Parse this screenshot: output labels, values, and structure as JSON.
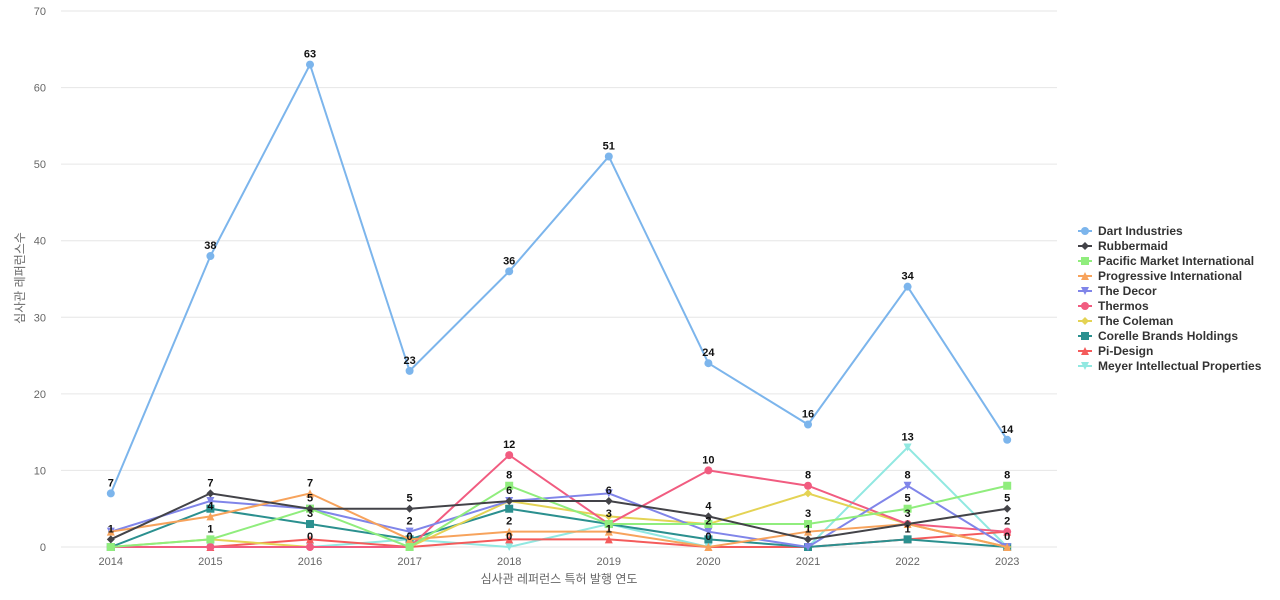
{
  "chart_data": {
    "type": "line",
    "title": "",
    "xlabel": "심사관 레퍼런스 특허 발행 연도",
    "ylabel": "심사관 레퍼런스수",
    "ylim": [
      0,
      70
    ],
    "yticks": [
      0,
      10,
      20,
      30,
      40,
      50,
      60,
      70
    ],
    "grid": true,
    "legend_position": "right",
    "x": [
      "2014",
      "2015",
      "2016",
      "2017",
      "2018",
      "2019",
      "2020",
      "2021",
      "2022",
      "2023"
    ],
    "series": [
      {
        "name": "Dart Industries",
        "color": "#7cb5ec",
        "marker": "circle",
        "values": [
          7,
          38,
          63,
          23,
          36,
          51,
          24,
          16,
          34,
          14
        ]
      },
      {
        "name": "Rubbermaid",
        "color": "#434348",
        "marker": "diamond",
        "values": [
          1,
          7,
          5,
          5,
          6,
          6,
          4,
          1,
          3,
          5
        ]
      },
      {
        "name": "Pacific Market International",
        "color": "#90ed7d",
        "marker": "square",
        "values": [
          0,
          1,
          5,
          0,
          8,
          3,
          3,
          3,
          5,
          8
        ]
      },
      {
        "name": "Progressive International",
        "color": "#f7a35c",
        "marker": "triangle",
        "values": [
          2,
          4,
          7,
          1,
          2,
          2,
          0,
          2,
          3,
          0
        ]
      },
      {
        "name": "The Decor",
        "color": "#8085e9",
        "marker": "triangle-down",
        "values": [
          2,
          6,
          5,
          2,
          6,
          7,
          2,
          0,
          8,
          0
        ]
      },
      {
        "name": "Thermos",
        "color": "#f15c80",
        "marker": "circle",
        "values": [
          0,
          0,
          0,
          0,
          12,
          3,
          10,
          8,
          3,
          2
        ]
      },
      {
        "name": "The Coleman",
        "color": "#e4d354",
        "marker": "diamond",
        "values": [
          0,
          1,
          0,
          0,
          6,
          4,
          3,
          7,
          3,
          0
        ]
      },
      {
        "name": "Corelle Brands Holdings",
        "color": "#2b908f",
        "marker": "square",
        "values": [
          0,
          5,
          3,
          1,
          5,
          3,
          1,
          0,
          1,
          0
        ]
      },
      {
        "name": "Pi-Design",
        "color": "#f45b5b",
        "marker": "triangle",
        "values": [
          0,
          0,
          1,
          0,
          1,
          1,
          0,
          0,
          1,
          2
        ]
      },
      {
        "name": "Meyer Intellectual Properties",
        "color": "#91e8e1",
        "marker": "triangle-down",
        "values": [
          0,
          0,
          0,
          1,
          0,
          3,
          0,
          0,
          13,
          0
        ]
      }
    ],
    "data_labels": [
      {
        "x": "2014",
        "values": [
          "7",
          "1"
        ]
      },
      {
        "x": "2015",
        "values": [
          "38",
          "7",
          "4",
          "1"
        ]
      },
      {
        "x": "2016",
        "values": [
          "63",
          "7",
          "5",
          "3",
          "0"
        ]
      },
      {
        "x": "2017",
        "values": [
          "23",
          "5",
          "2",
          "0"
        ]
      },
      {
        "x": "2018",
        "values": [
          "36",
          "12",
          "8",
          "6",
          "2",
          "0"
        ]
      },
      {
        "x": "2019",
        "values": [
          "51",
          "6",
          "3",
          "1"
        ]
      },
      {
        "x": "2020",
        "values": [
          "24",
          "10",
          "4",
          "2",
          "0"
        ]
      },
      {
        "x": "2021",
        "values": [
          "16",
          "8",
          "3",
          "1"
        ]
      },
      {
        "x": "2022",
        "values": [
          "34",
          "13",
          "8",
          "5",
          "3",
          "1"
        ]
      },
      {
        "x": "2023",
        "values": [
          "14",
          "8",
          "5",
          "2",
          "0"
        ]
      }
    ]
  }
}
